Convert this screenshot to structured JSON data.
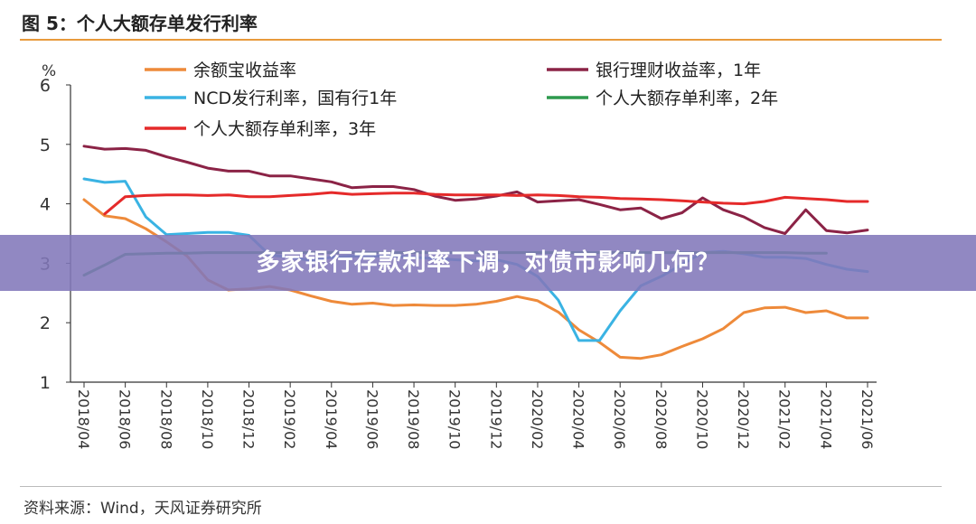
{
  "header": {
    "figure_title": "图 5：个人大额存单发行利率"
  },
  "footer": {
    "source": "资料来源：Wind，天风证券研究所"
  },
  "banner": {
    "text": "多家银行存款利率下调，对债市影响几何？"
  },
  "chart_data": {
    "type": "line",
    "ylabel": "%",
    "ylim": [
      1,
      6
    ],
    "yticks": [
      1,
      2,
      3,
      4,
      5,
      6
    ],
    "grid": false,
    "legend_position": "top",
    "x": [
      "2018/04",
      "2018/05",
      "2018/06",
      "2018/07",
      "2018/08",
      "2018/09",
      "2018/10",
      "2018/11",
      "2018/12",
      "2019/01",
      "2019/02",
      "2019/03",
      "2019/04",
      "2019/05",
      "2019/06",
      "2019/07",
      "2019/08",
      "2019/09",
      "2019/10",
      "2019/11",
      "2019/12",
      "2020/01",
      "2020/02",
      "2020/03",
      "2020/04",
      "2020/05",
      "2020/06",
      "2020/07",
      "2020/08",
      "2020/09",
      "2020/10",
      "2020/11",
      "2020/12",
      "2021/01",
      "2021/02",
      "2021/03",
      "2021/04",
      "2021/05",
      "2021/06"
    ],
    "xticklabels": [
      "2018/04",
      "2018/06",
      "2018/08",
      "2018/10",
      "2018/12",
      "2019/02",
      "2019/04",
      "2019/06",
      "2019/08",
      "2019/10",
      "2019/12",
      "2020/02",
      "2020/04",
      "2020/06",
      "2020/08",
      "2020/10",
      "2020/12",
      "2021/02",
      "2021/04",
      "2021/06"
    ],
    "series": [
      {
        "name": "余额宝收益率",
        "color": "#ee8a3a",
        "values": [
          4.07,
          3.8,
          3.75,
          3.58,
          3.36,
          3.12,
          2.72,
          2.55,
          2.57,
          2.61,
          2.55,
          2.45,
          2.36,
          2.31,
          2.33,
          2.29,
          2.3,
          2.29,
          2.29,
          2.31,
          2.36,
          2.44,
          2.37,
          2.18,
          1.88,
          1.67,
          1.42,
          1.4,
          1.46,
          1.6,
          1.73,
          1.9,
          2.17,
          2.25,
          2.26,
          2.17,
          2.2,
          2.08,
          2.08
        ]
      },
      {
        "name": "银行理财收益率，1年",
        "color": "#8b2346",
        "values": [
          4.97,
          4.92,
          4.93,
          4.9,
          4.79,
          4.7,
          4.6,
          4.55,
          4.55,
          4.47,
          4.47,
          4.42,
          4.37,
          4.27,
          4.29,
          4.29,
          4.24,
          4.13,
          4.06,
          4.08,
          4.13,
          4.2,
          4.03,
          4.05,
          4.07,
          3.99,
          3.9,
          3.93,
          3.75,
          3.85,
          4.1,
          3.9,
          3.78,
          3.6,
          3.5,
          3.9,
          3.55,
          3.51,
          3.56
        ]
      },
      {
        "name": "NCD发行利率，国有行1年",
        "color": "#3ab3e3",
        "values": [
          4.42,
          4.36,
          4.38,
          3.78,
          3.48,
          3.5,
          3.52,
          3.52,
          3.47,
          3.14,
          3.1,
          3.05,
          3.1,
          3.12,
          3.12,
          3.12,
          3.1,
          3.08,
          3.06,
          3.04,
          3.06,
          2.98,
          2.78,
          2.38,
          1.7,
          1.7,
          2.2,
          2.62,
          2.78,
          2.98,
          3.18,
          3.2,
          3.16,
          3.1,
          3.1,
          3.08,
          2.98,
          2.9,
          2.86
        ]
      },
      {
        "name": "个人大额存单利率，2年",
        "color": "#2e9a4e",
        "values": [
          2.8,
          2.97,
          3.15,
          3.16,
          3.17,
          3.17,
          3.18,
          3.18,
          3.18,
          3.18,
          3.18,
          3.18,
          3.18,
          3.18,
          3.18,
          3.18,
          3.18,
          3.18,
          3.18,
          3.18,
          3.18,
          3.18,
          3.18,
          3.18,
          3.18,
          3.18,
          3.18,
          3.18,
          3.18,
          3.18,
          3.18,
          3.18,
          3.18,
          3.18,
          3.18,
          3.17,
          3.17,
          null,
          null
        ]
      },
      {
        "name": "个人大额存单利率，3年",
        "color": "#e52a2a",
        "values": [
          null,
          3.83,
          4.12,
          4.14,
          4.15,
          4.15,
          4.14,
          4.15,
          4.12,
          4.12,
          4.14,
          4.16,
          4.19,
          4.16,
          4.17,
          4.18,
          4.18,
          4.16,
          4.15,
          4.15,
          4.15,
          4.14,
          4.15,
          4.14,
          4.12,
          4.11,
          4.09,
          4.08,
          4.07,
          4.05,
          4.03,
          4.01,
          4.0,
          4.04,
          4.11,
          4.09,
          4.07,
          4.04,
          4.04
        ]
      }
    ]
  }
}
